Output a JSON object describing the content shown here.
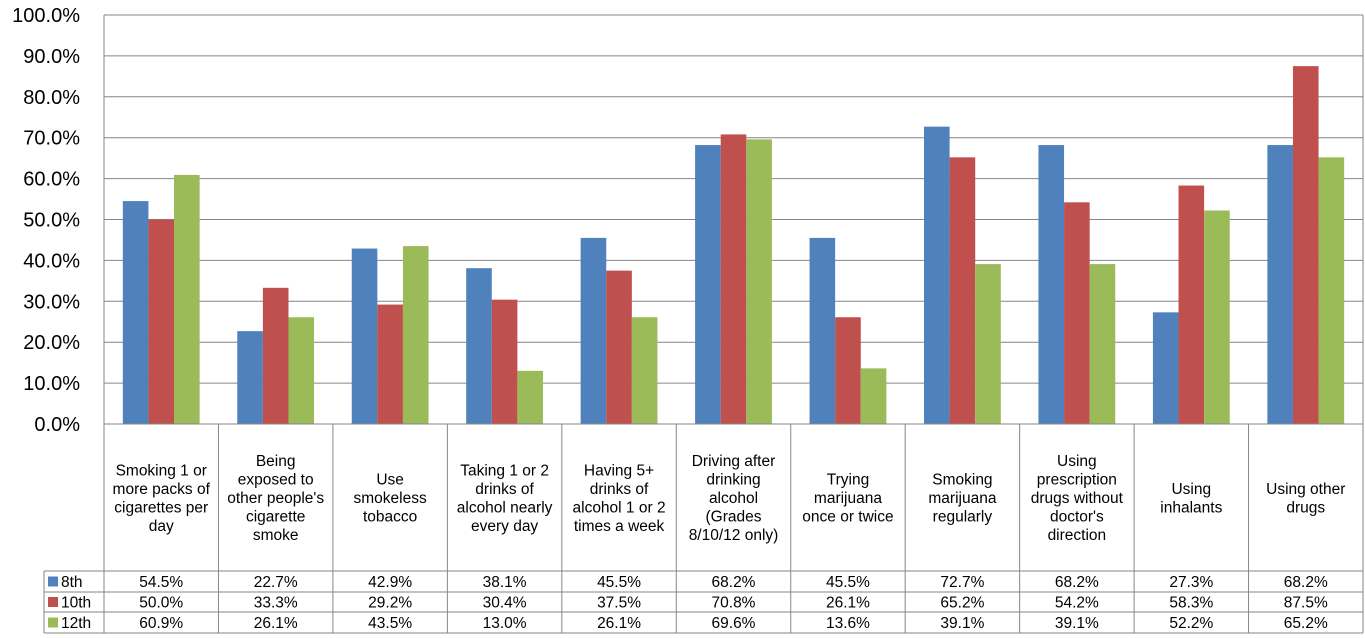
{
  "chart_data": {
    "type": "bar",
    "title": "",
    "xlabel": "",
    "ylabel": "",
    "ylim": [
      0,
      100
    ],
    "y_ticks": [
      "0.0%",
      "10.0%",
      "20.0%",
      "30.0%",
      "40.0%",
      "50.0%",
      "60.0%",
      "70.0%",
      "80.0%",
      "90.0%",
      "100.0%"
    ],
    "grid": true,
    "legend": "data table below chart",
    "categories": [
      "Smoking 1 or more packs of cigarettes per day",
      "Being exposed to other people's cigarette smoke",
      "Use smokeless tobacco",
      "Taking 1 or 2 drinks of alcohol nearly every day",
      "Having 5+ drinks of alcohol 1 or 2 times a week",
      "Driving after drinking alcohol (Grades 8/10/12 only)",
      "Trying marijuana once or twice",
      "Smoking marijuana regularly",
      "Using prescription drugs without doctor's direction",
      "Using inhalants",
      "Using other drugs"
    ],
    "category_lines": [
      [
        "Smoking 1 or",
        "more packs of",
        "cigarettes per",
        "day"
      ],
      [
        "Being",
        "exposed to",
        "other people's",
        "cigarette",
        "smoke"
      ],
      [
        "Use",
        "smokeless",
        "tobacco"
      ],
      [
        "Taking 1 or 2",
        "drinks of",
        "alcohol nearly",
        "every day"
      ],
      [
        "Having 5+",
        "drinks of",
        "alcohol 1 or 2",
        "times a week"
      ],
      [
        "Driving after",
        "drinking",
        "alcohol",
        "(Grades",
        "8/10/12 only)"
      ],
      [
        "Trying",
        "marijuana",
        "once or twice"
      ],
      [
        "Smoking",
        "marijuana",
        "regularly"
      ],
      [
        "Using",
        "prescription",
        "drugs without",
        "doctor's",
        "direction"
      ],
      [
        "Using",
        "inhalants"
      ],
      [
        "Using other",
        "drugs"
      ]
    ],
    "series": [
      {
        "name": "8th",
        "color": "#4f81bd",
        "values": [
          54.5,
          22.7,
          42.9,
          38.1,
          45.5,
          68.2,
          45.5,
          72.7,
          68.2,
          27.3,
          68.2
        ],
        "labels": [
          "54.5%",
          "22.7%",
          "42.9%",
          "38.1%",
          "45.5%",
          "68.2%",
          "45.5%",
          "72.7%",
          "68.2%",
          "27.3%",
          "68.2%"
        ]
      },
      {
        "name": "10th",
        "color": "#c0504d",
        "values": [
          50.0,
          33.3,
          29.2,
          30.4,
          37.5,
          70.8,
          26.1,
          65.2,
          54.2,
          58.3,
          87.5
        ],
        "labels": [
          "50.0%",
          "33.3%",
          "29.2%",
          "30.4%",
          "37.5%",
          "70.8%",
          "26.1%",
          "65.2%",
          "54.2%",
          "58.3%",
          "87.5%"
        ]
      },
      {
        "name": "12th",
        "color": "#9bbb59",
        "values": [
          60.9,
          26.1,
          43.5,
          13.0,
          26.1,
          69.6,
          13.6,
          39.1,
          39.1,
          52.2,
          65.2
        ],
        "labels": [
          "60.9%",
          "26.1%",
          "43.5%",
          "13.0%",
          "26.1%",
          "69.6%",
          "13.6%",
          "39.1%",
          "39.1%",
          "52.2%",
          "65.2%"
        ]
      }
    ]
  }
}
